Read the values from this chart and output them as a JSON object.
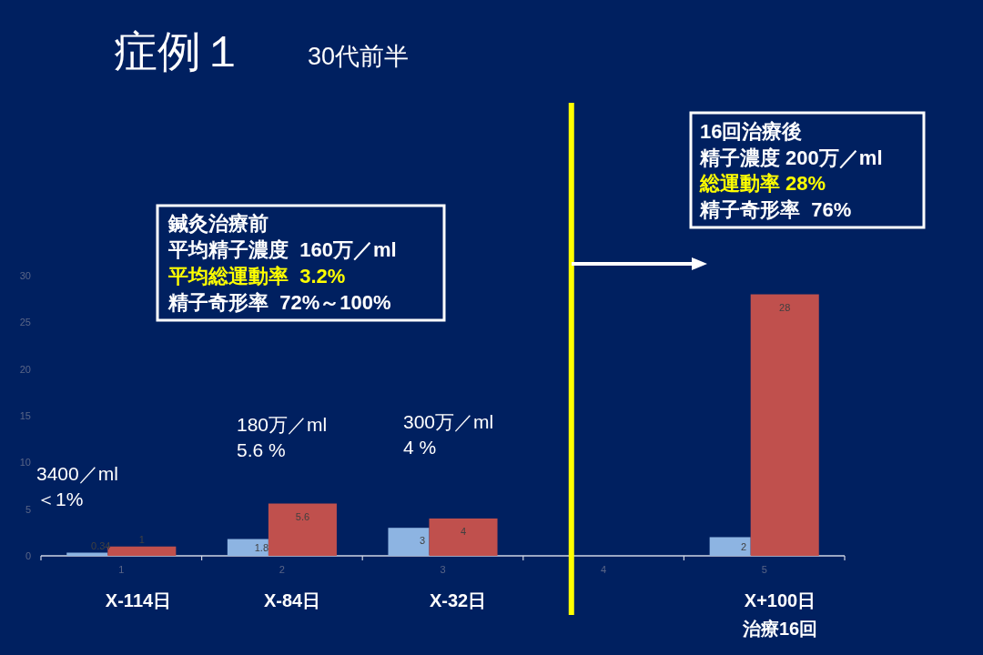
{
  "chart_data": {
    "type": "bar",
    "title": "症例１",
    "subtitle": "30代前半",
    "xlim": [
      0.5,
      5.5
    ],
    "xticks": [
      {
        "value": 0.5,
        "label": null
      },
      1,
      {
        "value": 1.5,
        "label": null
      },
      2,
      {
        "value": 2.5,
        "label": null
      },
      3,
      {
        "value": 3.5,
        "label": null
      },
      4,
      {
        "value": 4.5,
        "label": null
      },
      5,
      {
        "value": 5.5,
        "label": null
      }
    ],
    "ylim": [
      0,
      30
    ],
    "yticks": [
      0,
      5,
      10,
      15,
      20,
      25,
      30
    ],
    "series": [
      {
        "color": "#8db4e2",
        "x": [
          1,
          2,
          3,
          5
        ],
        "values": [
          0.34,
          1.8,
          3,
          2
        ]
      },
      {
        "color": "#c0504d",
        "x": [
          1,
          2,
          3,
          5
        ],
        "values": [
          1,
          5.6,
          4,
          28
        ]
      }
    ],
    "data_labels": true,
    "ref_lines": [
      {
        "axis": "x",
        "value": 3.8,
        "color": "#ffff00"
      }
    ],
    "annotations": [
      "鍼灸治療前",
      "平均精子濃度  160万／ml",
      "平均総運動率  3.2%",
      "精子奇形率  72%～100%",
      "16回治療後",
      "精子濃度 200万／ml",
      "総運動率 28%",
      "精子奇形率  76%",
      "3400／ml",
      "＜1%",
      "180万／ml",
      "5.6 %",
      "300万／ml",
      "4 %",
      "X-114日",
      "X-84日",
      "X-32日",
      "X+100日",
      "治療16回"
    ]
  }
}
